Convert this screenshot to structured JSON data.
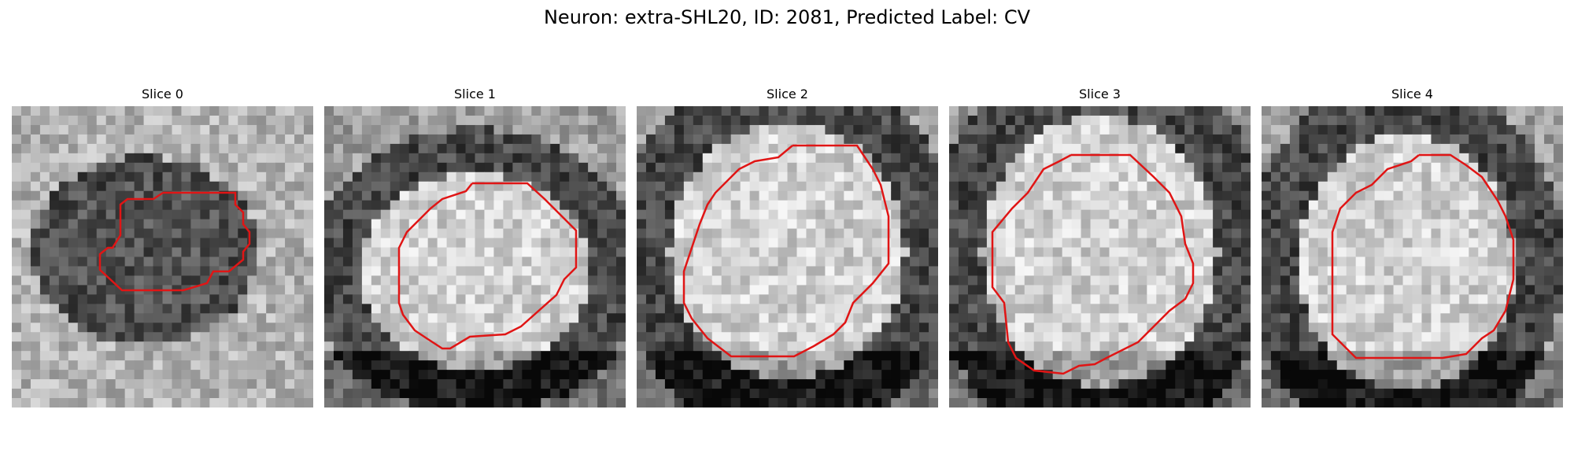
{
  "figure": {
    "title": "Neuron: extra-SHL20, ID: 2081, Predicted Label: CV"
  },
  "colors": {
    "contour": "#e01515",
    "background": "#ffffff"
  },
  "panels": [
    {
      "label": "Slice 0"
    },
    {
      "label": "Slice 1"
    },
    {
      "label": "Slice 2"
    },
    {
      "label": "Slice 3"
    },
    {
      "label": "Slice 4"
    }
  ]
}
